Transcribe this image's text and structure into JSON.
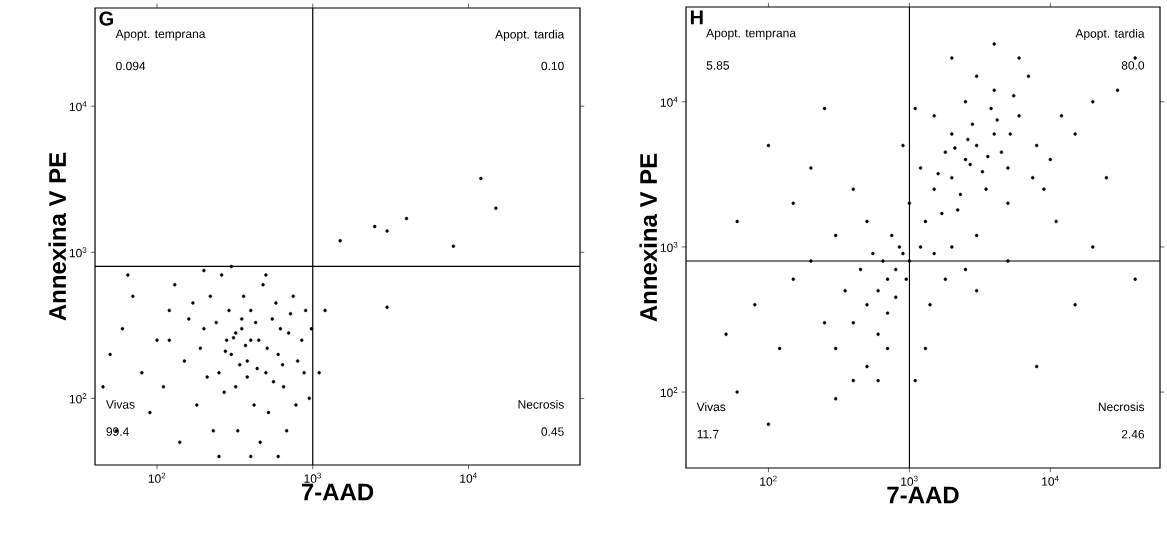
{
  "chart_data": [
    {
      "type": "scatter",
      "title": "G",
      "xlabel": "7-AAD",
      "ylabel": "Annexina V PE",
      "log": "xy",
      "xlim": [
        40,
        52000
      ],
      "ylim": [
        35,
        47000
      ],
      "xticks": [
        {
          "value": 100,
          "label": "10$^{2}$"
        },
        {
          "value": 1000,
          "label": "10$^{3}$"
        },
        {
          "value": 10000,
          "label": "10$^{4}$"
        }
      ],
      "yticks": [
        {
          "value": 100,
          "label": "10$^{2}$"
        },
        {
          "value": 1000,
          "label": "10$^{3}$"
        },
        {
          "value": 10000,
          "label": "10$^{4}$"
        }
      ],
      "ref_lines": [
        {
          "axis": "x",
          "value": 1000,
          "color": "#000000"
        },
        {
          "axis": "y",
          "value": 800,
          "color": "#000000"
        }
      ],
      "annotations": [
        "Apopt. temprana",
        "0.094",
        "Apopt. tardia",
        "0.10",
        "Vivas",
        "99.4",
        "Necrosis",
        "0.45"
      ],
      "series": [
        {
          "color": "#000000",
          "x": [
            60,
            80,
            100,
            120,
            150,
            180,
            200,
            220,
            250,
            280,
            300,
            320,
            350,
            380,
            400,
            420,
            450,
            500,
            550,
            600,
            650,
            700,
            800,
            900,
            950,
            70,
            90,
            110,
            130,
            160,
            190,
            230,
            260,
            290,
            330,
            360,
            400,
            440,
            480,
            520,
            580,
            620,
            680,
            750,
            850,
            50,
            45,
            55,
            65,
            140,
            170,
            210,
            240,
            270,
            310,
            340,
            370,
            430,
            460,
            510,
            560,
            640,
            720,
            780,
            880,
            980,
            300,
            200,
            500,
            400,
            250,
            600,
            120,
            350,
            275,
            320,
            380,
            1500,
            2500,
            4000,
            8000,
            12000,
            15000,
            3000,
            1200,
            3000,
            1100
          ],
          "values": [
            300,
            150,
            250,
            400,
            180,
            90,
            300,
            500,
            150,
            250,
            200,
            120,
            300,
            180,
            400,
            90,
            250,
            150,
            350,
            200,
            120,
            280,
            180,
            400,
            100,
            500,
            80,
            120,
            600,
            350,
            220,
            60,
            700,
            400,
            60,
            500,
            250,
            160,
            600,
            80,
            450,
            300,
            60,
            500,
            250,
            200,
            120,
            60,
            700,
            50,
            450,
            140,
            330,
            110,
            260,
            170,
            230,
            330,
            50,
            220,
            130,
            170,
            380,
            90,
            150,
            300,
            800,
            750,
            700,
            40,
            40,
            40,
            250,
            350,
            210,
            280,
            140,
            1200,
            1500,
            1700,
            1100,
            3200,
            2000,
            1400,
            400,
            420,
            150
          ]
        }
      ]
    },
    {
      "type": "scatter",
      "title": "H",
      "xlabel": "7-AAD",
      "ylabel": "Annexina V PE",
      "log": "xy",
      "xlim": [
        26,
        60000
      ],
      "ylim": [
        30,
        45000
      ],
      "xticks": [
        {
          "value": 100,
          "label": "10$^{2}$"
        },
        {
          "value": 1000,
          "label": "10$^{3}$"
        },
        {
          "value": 10000,
          "label": "10$^{4}$"
        }
      ],
      "yticks": [
        {
          "value": 100,
          "label": "10$^{2}$"
        },
        {
          "value": 1000,
          "label": "10$^{3}$"
        },
        {
          "value": 10000,
          "label": "10$^{4}$"
        }
      ],
      "ref_lines": [
        {
          "axis": "x",
          "value": 1000,
          "color": "#000000"
        },
        {
          "axis": "y",
          "value": 800,
          "color": "#000000"
        }
      ],
      "annotations": [
        "Apopt. temprana",
        "5.85",
        "Apopt. tardia",
        "80.0",
        "Vivas",
        "11.7",
        "Necrosis",
        "2.46"
      ],
      "series": [
        {
          "color": "#000000",
          "x": [
            2500,
            2000,
            3000,
            1500,
            4000,
            5000,
            3500,
            2000,
            1800,
            6000,
            8000,
            10000,
            1200,
            2500,
            3000,
            4000,
            1500,
            7000,
            12000,
            15000,
            20000,
            1000,
            1300,
            2200,
            3000,
            5000,
            9000,
            2800,
            3300,
            2600,
            4500,
            1700,
            6000,
            2000,
            4000,
            25000,
            30000,
            11000,
            900,
            1100,
            3800,
            5500,
            7500,
            2300,
            1600,
            3600,
            4200,
            2100,
            2700,
            5200,
            900,
            800,
            700,
            600,
            1000,
            500,
            400,
            600,
            300,
            700,
            450,
            550,
            800,
            950,
            350,
            250,
            500,
            600,
            700,
            400,
            300,
            850,
            650,
            750,
            1200,
            1500,
            2000,
            1800,
            1400,
            2500,
            3000,
            5000,
            1300,
            1100,
            100,
            150,
            60,
            200,
            80,
            120,
            200,
            300,
            400,
            150,
            50,
            250,
            500,
            60,
            100,
            15000,
            8000,
            20000,
            40000,
            40000
          ],
          "values": [
            4000,
            3000,
            5000,
            2500,
            6000,
            3500,
            2500,
            6000,
            4500,
            8000,
            5000,
            4000,
            3500,
            10000,
            15000,
            12000,
            8000,
            15000,
            8000,
            6000,
            10000,
            2000,
            1500,
            1800,
            1200,
            2000,
            2500,
            7000,
            3300,
            5500,
            4500,
            1700,
            20000,
            20000,
            25000,
            3000,
            12000,
            1500,
            5000,
            9000,
            9000,
            11000,
            3000,
            2300,
            3200,
            4200,
            7500,
            4800,
            3700,
            6000,
            900,
            700,
            600,
            500,
            800,
            400,
            300,
            250,
            200,
            350,
            700,
            900,
            450,
            600,
            500,
            300,
            150,
            120,
            200,
            120,
            90,
            1000,
            800,
            1200,
            1000,
            900,
            1000,
            600,
            400,
            700,
            500,
            800,
            200,
            120,
            5000,
            2000,
            1500,
            800,
            400,
            200,
            3500,
            1200,
            2500,
            600,
            250,
            9000,
            1500,
            100,
            60,
            400,
            150,
            1000,
            600,
            20000
          ]
        }
      ]
    }
  ]
}
